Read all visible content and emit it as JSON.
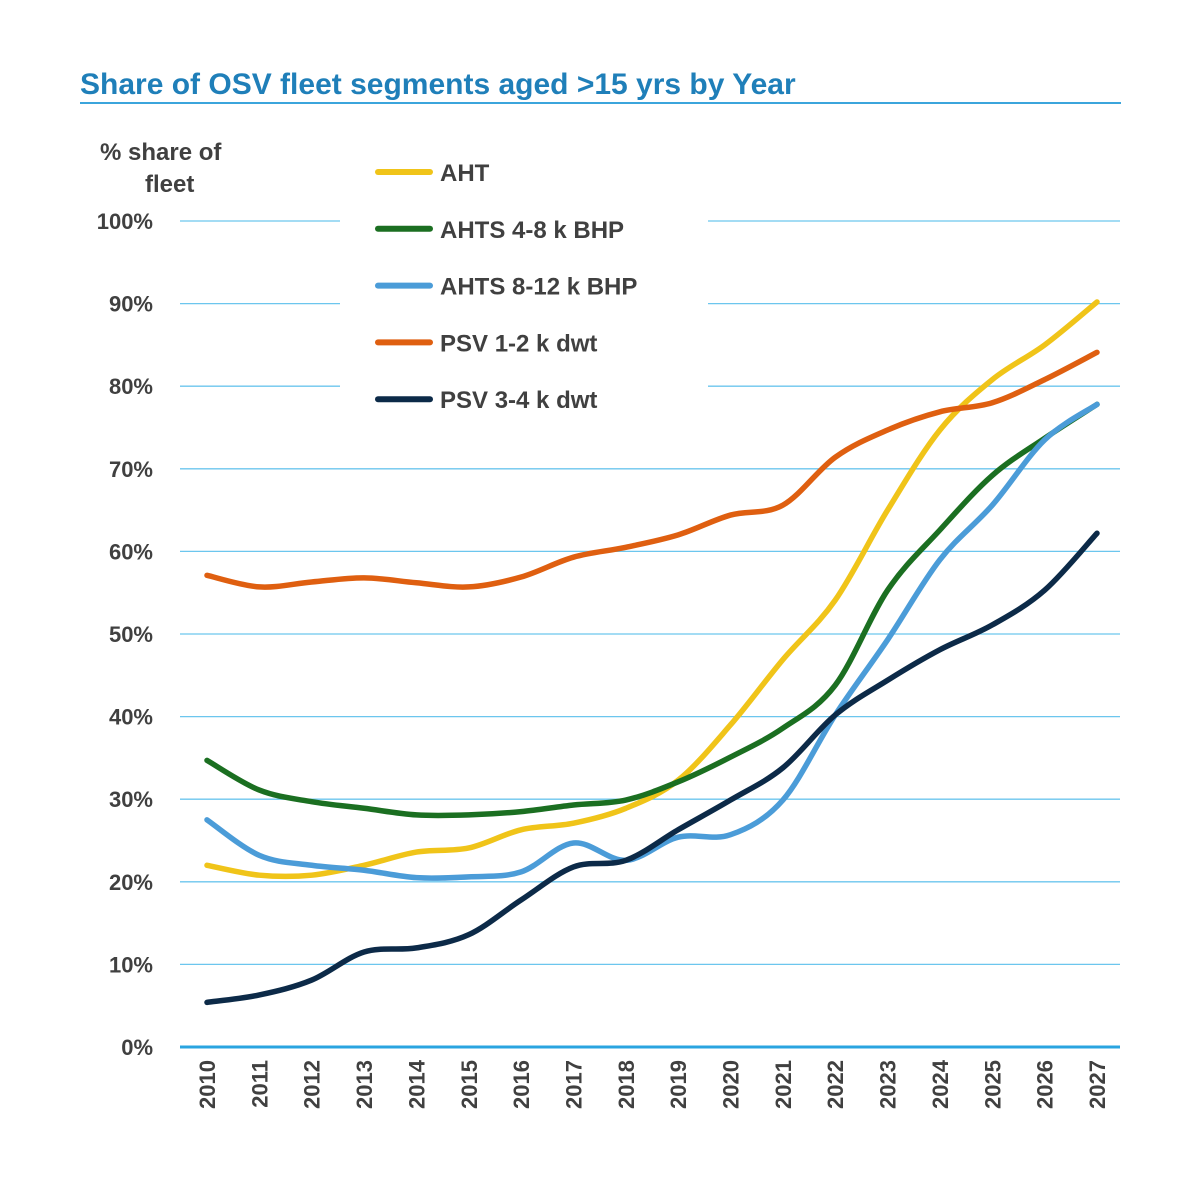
{
  "chart_data": {
    "type": "line",
    "title": "Share of OSV fleet segments aged >15 yrs by Year",
    "ylabel": "% share of fleet",
    "xlabel": "",
    "ylim": [
      0,
      100
    ],
    "ytick_labels": [
      "0%",
      "10%",
      "20%",
      "30%",
      "40%",
      "50%",
      "60%",
      "70%",
      "80%",
      "90%",
      "100%"
    ],
    "x": [
      "2010",
      "2011",
      "2012",
      "2013",
      "2014",
      "2015",
      "2016",
      "2017",
      "2018",
      "2019",
      "2020",
      "2021",
      "2022",
      "2023",
      "2024",
      "2025",
      "2026",
      "2027"
    ],
    "grid": "horizontal",
    "legend_position": "top-left",
    "series": [
      {
        "name": "AHT",
        "color": "#f0c419",
        "values": [
          22.0,
          20.8,
          20.8,
          22.0,
          23.6,
          24.1,
          26.3,
          27.1,
          28.9,
          32.3,
          39.0,
          46.9,
          54.1,
          65.0,
          74.7,
          80.8,
          85.0,
          90.2
        ]
      },
      {
        "name": "AHTS 4-8 k BHP",
        "color": "#1b6f21",
        "values": [
          34.7,
          31.1,
          29.7,
          28.9,
          28.1,
          28.1,
          28.5,
          29.3,
          29.9,
          32.1,
          35.1,
          38.6,
          43.8,
          55.3,
          62.6,
          69.2,
          73.7,
          77.8
        ]
      },
      {
        "name": "AHTS 8-12 k BHP",
        "color": "#4b9cd8",
        "values": [
          27.5,
          23.2,
          22.0,
          21.4,
          20.5,
          20.6,
          21.2,
          24.7,
          22.6,
          25.4,
          25.7,
          29.9,
          40.2,
          49.3,
          59.0,
          65.6,
          73.5,
          77.8
        ]
      },
      {
        "name": "PSV 1-2 k dwt",
        "color": "#df5f10",
        "values": [
          57.1,
          55.7,
          56.3,
          56.8,
          56.2,
          55.7,
          56.9,
          59.3,
          60.5,
          62.0,
          64.4,
          65.6,
          71.4,
          74.7,
          76.9,
          78.0,
          80.8,
          84.1
        ]
      },
      {
        "name": "PSV 3-4 k dwt",
        "color": "#0c2a48",
        "values": [
          5.4,
          6.3,
          8.1,
          11.5,
          12.0,
          13.6,
          17.8,
          21.8,
          22.6,
          26.3,
          29.9,
          33.8,
          40.2,
          44.4,
          48.1,
          51.1,
          55.3,
          62.2
        ]
      }
    ]
  }
}
